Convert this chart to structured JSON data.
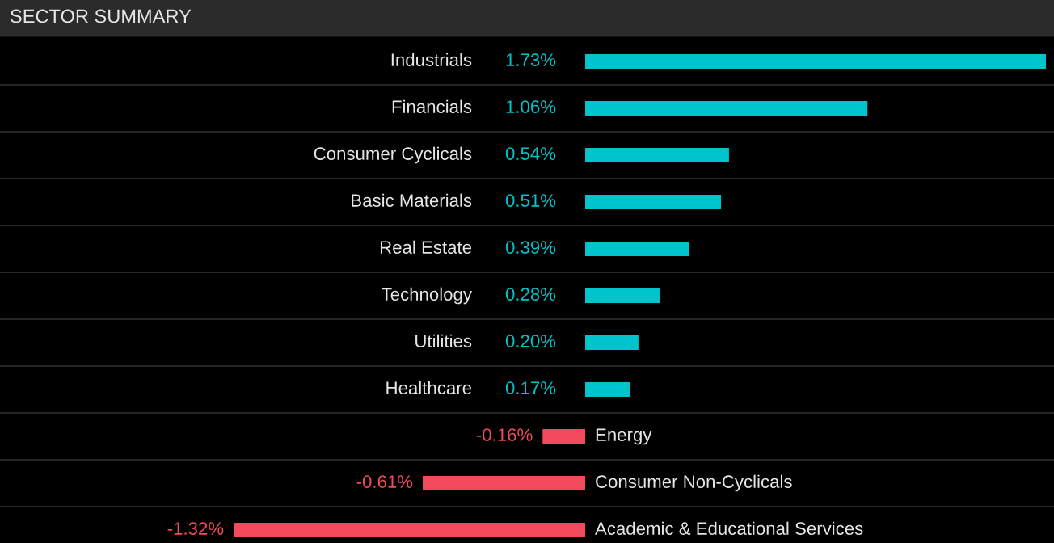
{
  "chart_data": {
    "type": "bar",
    "orientation": "horizontal",
    "title": "SECTOR SUMMARY",
    "categories": [
      "Industrials",
      "Financials",
      "Consumer Cyclicals",
      "Basic Materials",
      "Real Estate",
      "Technology",
      "Utilities",
      "Healthcare",
      "Energy",
      "Consumer Non-Cyclicals",
      "Academic & Educational Services"
    ],
    "values": [
      1.73,
      1.06,
      0.54,
      0.51,
      0.39,
      0.28,
      0.2,
      0.17,
      -0.16,
      -0.61,
      -1.32
    ],
    "colors": [
      "#00c4cc",
      "#00c4cc",
      "#00c4cc",
      "#00c4cc",
      "#00c4cc",
      "#00c4cc",
      "#00c4cc",
      "#00c4cc",
      "#f24a5c",
      "#f24a5c",
      "#f24a5c"
    ],
    "value_labels": [
      "1.73%",
      "1.06%",
      "0.54%",
      "0.51%",
      "0.39%",
      "0.28%",
      "0.20%",
      "0.17%",
      "-0.16%",
      "-0.61%",
      "-1.32%"
    ],
    "legend": false
  }
}
